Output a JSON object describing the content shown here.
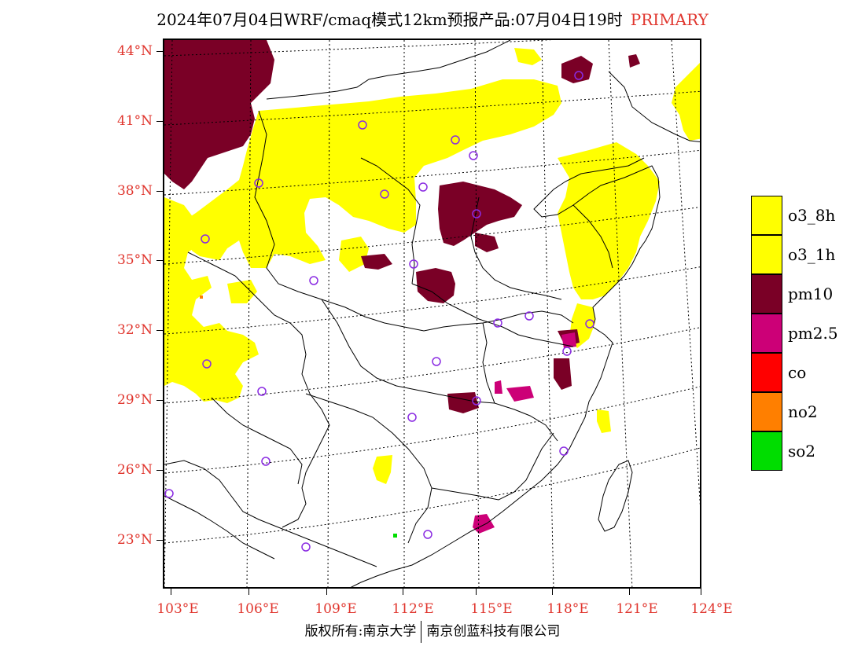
{
  "title": {
    "text": "2024年07月04日WRF/cmaq模式12km预报产品:07月04日19时",
    "tag": "PRIMARY"
  },
  "axes": {
    "lat_labels": [
      "44°N",
      "41°N",
      "38°N",
      "35°N",
      "32°N",
      "29°N",
      "26°N",
      "23°N"
    ],
    "lon_labels": [
      "103°E",
      "106°E",
      "109°E",
      "112°E",
      "115°E",
      "118°E",
      "121°E",
      "124°E"
    ]
  },
  "legend": [
    {
      "label": "o3_8h",
      "color": "#ffff00"
    },
    {
      "label": "o3_1h",
      "color": "#ffff00"
    },
    {
      "label": "pm10",
      "color": "#7a0026"
    },
    {
      "label": "pm2.5",
      "color": "#cc0077"
    },
    {
      "label": "co",
      "color": "#ff0000"
    },
    {
      "label": "no2",
      "color": "#ff7f00"
    },
    {
      "label": "so2",
      "color": "#00dd00"
    }
  ],
  "map": {
    "station_marker": "circle-station-icon",
    "station_color": "#8a2be2"
  },
  "footer": {
    "left": "版权所有:南京大学",
    "right": "南京创蓝科技有限公司"
  }
}
